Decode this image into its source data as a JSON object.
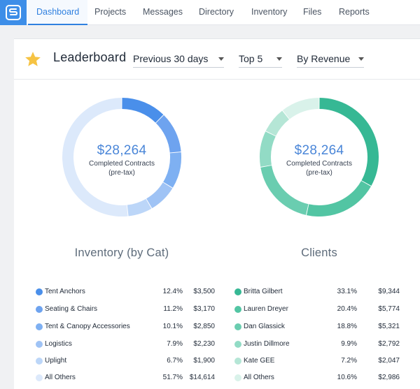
{
  "nav": {
    "logo_icon": "app-logo-icon",
    "tabs": [
      {
        "label": "Dashboard",
        "active": true
      },
      {
        "label": "Projects"
      },
      {
        "label": "Messages"
      },
      {
        "label": "Directory"
      },
      {
        "label": "Inventory"
      },
      {
        "label": "Files"
      },
      {
        "label": "Reports"
      }
    ]
  },
  "header": {
    "star_icon": "star-icon",
    "title": "Leaderboard",
    "filters": {
      "period": "Previous 30 days",
      "top": "Top 5",
      "sort": "By Revenue"
    }
  },
  "colors": {
    "accent": "#2f80e0",
    "inventory": [
      "#4a8fea",
      "#6ea3ef",
      "#7eb0f2",
      "#9fc3f5",
      "#bcd6f8",
      "#dce9fb"
    ],
    "clients": [
      "#36b894",
      "#52c5a3",
      "#6acdb0",
      "#92dbc5",
      "#b5e6d6",
      "#d9f2ea"
    ]
  },
  "inventory": {
    "section_title": "Inventory (by Cat)",
    "total": "$28,264",
    "subtitle_line1": "Completed Contracts",
    "subtitle_line2": "(pre-tax)",
    "items": [
      {
        "label": "Tent Anchors",
        "pct": "12.4%",
        "amount": "$3,500",
        "value": 12.4
      },
      {
        "label": "Seating & Chairs",
        "pct": "11.2%",
        "amount": "$3,170",
        "value": 11.2
      },
      {
        "label": "Tent & Canopy Accessories",
        "pct": "10.1%",
        "amount": "$2,850",
        "value": 10.1
      },
      {
        "label": "Logistics",
        "pct": "7.9%",
        "amount": "$2,230",
        "value": 7.9
      },
      {
        "label": "Uplight",
        "pct": "6.7%",
        "amount": "$1,900",
        "value": 6.7
      },
      {
        "label": "All Others",
        "pct": "51.7%",
        "amount": "$14,614",
        "value": 51.7
      }
    ]
  },
  "clients": {
    "section_title": "Clients",
    "total": "$28,264",
    "subtitle_line1": "Completed Contracts",
    "subtitle_line2": "(pre-tax)",
    "items": [
      {
        "label": "Britta Gilbert",
        "pct": "33.1%",
        "amount": "$9,344",
        "value": 33.1
      },
      {
        "label": "Lauren Dreyer",
        "pct": "20.4%",
        "amount": "$5,774",
        "value": 20.4
      },
      {
        "label": "Dan Glassick",
        "pct": "18.8%",
        "amount": "$5,321",
        "value": 18.8
      },
      {
        "label": "Justin Dillmore",
        "pct": "9.9%",
        "amount": "$2,792",
        "value": 9.9
      },
      {
        "label": "Kate GEE",
        "pct": "7.2%",
        "amount": "$2,047",
        "value": 7.2
      },
      {
        "label": "All Others",
        "pct": "10.6%",
        "amount": "$2,986",
        "value": 10.6
      }
    ]
  }
}
